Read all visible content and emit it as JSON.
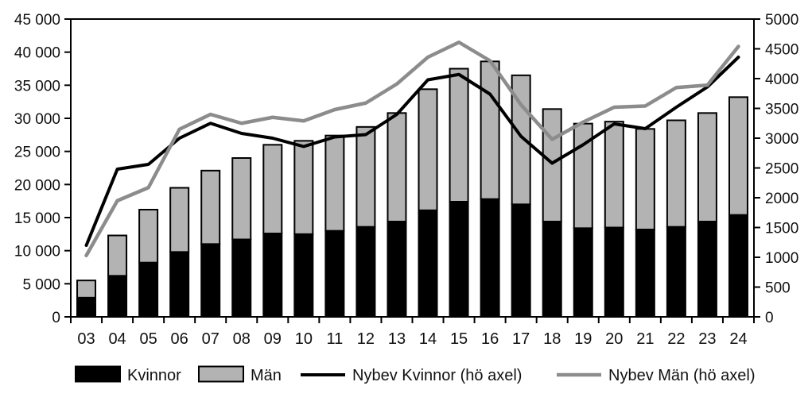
{
  "chart_data": {
    "type": "bar",
    "subtype": "stacked-bars-with-lines",
    "title": "",
    "xlabel": "",
    "ylabel_left": "",
    "ylabel_right": "",
    "grid": false,
    "background": "#ffffff",
    "categories": [
      "03",
      "04",
      "05",
      "06",
      "07",
      "08",
      "09",
      "10",
      "11",
      "12",
      "13",
      "14",
      "15",
      "16",
      "17",
      "18",
      "19",
      "20",
      "21",
      "22",
      "23",
      "24"
    ],
    "left_axis": {
      "min": 0,
      "max": 45000,
      "step": 5000,
      "tick_labels": [
        "0",
        "5 000",
        "10 000",
        "15 000",
        "20 000",
        "25 000",
        "30 000",
        "35 000",
        "40 000",
        "45 000"
      ]
    },
    "right_axis": {
      "min": 0,
      "max": 5000,
      "step": 500,
      "tick_labels": [
        "0",
        "500",
        "1000",
        "1500",
        "2000",
        "2500",
        "3000",
        "3500",
        "4000",
        "4500",
        "5000"
      ]
    },
    "bar_series": [
      {
        "name": "Kvinnor",
        "axis": "left",
        "stacked": true,
        "color": "#000000",
        "values": [
          2900,
          6200,
          8200,
          9800,
          11000,
          11700,
          12600,
          12500,
          13000,
          13600,
          14400,
          16100,
          17400,
          17800,
          17000,
          14400,
          13400,
          13500,
          13200,
          13600,
          14400,
          15400
        ]
      },
      {
        "name": "Män",
        "axis": "left",
        "stacked": true,
        "color": "#b3b3b3",
        "values": [
          2600,
          6100,
          8000,
          9700,
          11100,
          12300,
          13400,
          14100,
          14400,
          15100,
          16400,
          18300,
          20100,
          20800,
          19500,
          17000,
          15800,
          16000,
          15200,
          16100,
          16400,
          17800
        ]
      }
    ],
    "line_series": [
      {
        "name": "Nybev Kvinnor (hö axel)",
        "axis": "right",
        "color": "#000000",
        "width": 4,
        "values": [
          1200,
          2480,
          2560,
          3000,
          3250,
          3080,
          3000,
          2860,
          3020,
          3060,
          3400,
          3980,
          4070,
          3740,
          3030,
          2580,
          2890,
          3240,
          3160,
          3520,
          3860,
          4360
        ]
      },
      {
        "name": "Nybev Män  (hö axel)",
        "axis": "right",
        "color": "#8c8c8c",
        "width": 4.5,
        "values": [
          1030,
          1950,
          2170,
          3150,
          3400,
          3250,
          3350,
          3290,
          3480,
          3590,
          3910,
          4360,
          4610,
          4300,
          3560,
          2980,
          3270,
          3520,
          3540,
          3850,
          3890,
          4540
        ]
      }
    ],
    "legend": {
      "position": "bottom",
      "items": [
        {
          "label": "Kvinnor",
          "swatch": "rect",
          "color": "#000000"
        },
        {
          "label": "Män",
          "swatch": "rect",
          "color": "#b3b3b3"
        },
        {
          "label": "Nybev Kvinnor (hö axel)",
          "swatch": "line",
          "color": "#000000"
        },
        {
          "label": "Nybev Män  (hö axel)",
          "swatch": "line",
          "color": "#8c8c8c"
        }
      ]
    }
  }
}
